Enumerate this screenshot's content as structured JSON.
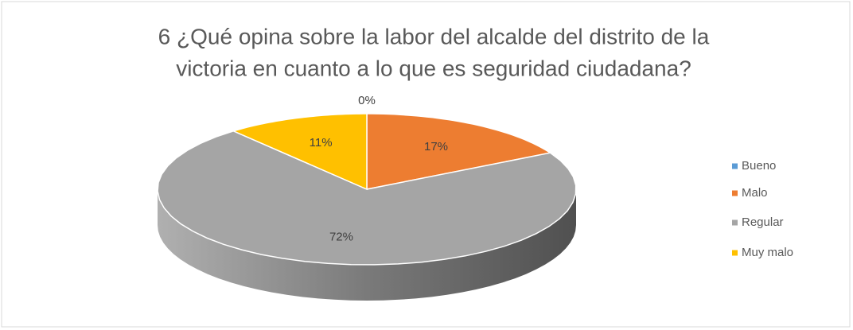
{
  "chart_data": {
    "type": "pie",
    "title": [
      "6 ¿Qué opina sobre la labor del alcalde del distrito de la",
      "victoria en cuanto a lo que es seguridad ciudadana?"
    ],
    "categories": [
      "Bueno",
      "Malo",
      "Regular",
      "Muy malo"
    ],
    "values": [
      0,
      17,
      72,
      11
    ],
    "value_labels": [
      "0%",
      "17%",
      "72%",
      "11%"
    ],
    "colors": [
      "#5b9bd5",
      "#ed7d31",
      "#a5a5a5",
      "#ffc000"
    ],
    "legend": "right"
  }
}
